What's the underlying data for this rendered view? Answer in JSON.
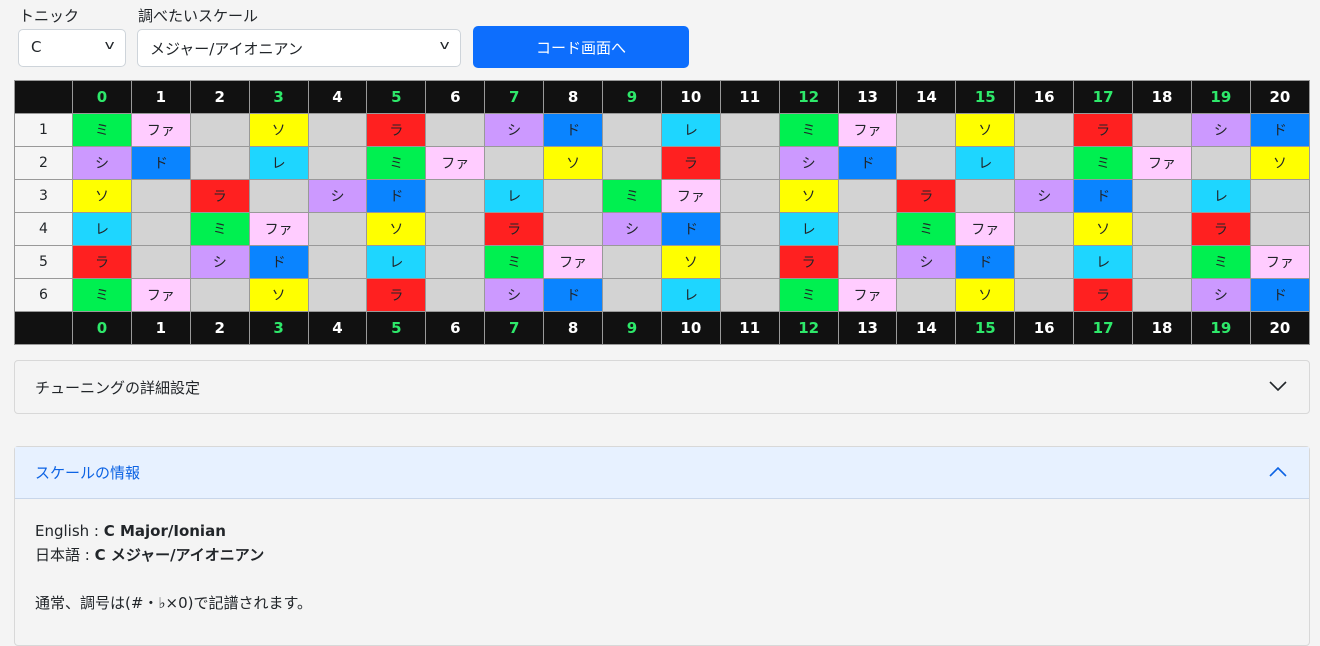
{
  "controls": {
    "tonic_label": "トニック",
    "tonic_value": "C",
    "scale_label": "調べたいスケール",
    "scale_value": "メジャー/アイオニアン",
    "chord_button": "コード画面へ"
  },
  "fretboard": {
    "frets": [
      "0",
      "1",
      "2",
      "3",
      "4",
      "5",
      "6",
      "7",
      "8",
      "9",
      "10",
      "11",
      "12",
      "13",
      "14",
      "15",
      "16",
      "17",
      "18",
      "19",
      "20"
    ],
    "marked_frets": [
      0,
      3,
      5,
      7,
      9,
      12,
      15,
      17,
      19
    ],
    "strings": [
      {
        "label": "1",
        "notes": [
          "ミ",
          "ファ",
          "",
          "ソ",
          "",
          "ラ",
          "",
          "シ",
          "ド",
          "",
          "レ",
          "",
          "ミ",
          "ファ",
          "",
          "ソ",
          "",
          "ラ",
          "",
          "シ",
          "ド"
        ]
      },
      {
        "label": "2",
        "notes": [
          "シ",
          "ド",
          "",
          "レ",
          "",
          "ミ",
          "ファ",
          "",
          "ソ",
          "",
          "ラ",
          "",
          "シ",
          "ド",
          "",
          "レ",
          "",
          "ミ",
          "ファ",
          "",
          "ソ"
        ]
      },
      {
        "label": "3",
        "notes": [
          "ソ",
          "",
          "ラ",
          "",
          "シ",
          "ド",
          "",
          "レ",
          "",
          "ミ",
          "ファ",
          "",
          "ソ",
          "",
          "ラ",
          "",
          "シ",
          "ド",
          "",
          "レ",
          ""
        ]
      },
      {
        "label": "4",
        "notes": [
          "レ",
          "",
          "ミ",
          "ファ",
          "",
          "ソ",
          "",
          "ラ",
          "",
          "シ",
          "ド",
          "",
          "レ",
          "",
          "ミ",
          "ファ",
          "",
          "ソ",
          "",
          "ラ",
          ""
        ]
      },
      {
        "label": "5",
        "notes": [
          "ラ",
          "",
          "シ",
          "ド",
          "",
          "レ",
          "",
          "ミ",
          "ファ",
          "",
          "ソ",
          "",
          "ラ",
          "",
          "シ",
          "ド",
          "",
          "レ",
          "",
          "ミ",
          "ファ"
        ]
      },
      {
        "label": "6",
        "notes": [
          "ミ",
          "ファ",
          "",
          "ソ",
          "",
          "ラ",
          "",
          "シ",
          "ド",
          "",
          "レ",
          "",
          "ミ",
          "ファ",
          "",
          "ソ",
          "",
          "ラ",
          "",
          "シ",
          "ド"
        ]
      }
    ],
    "note_colors": {
      "ド": "#0a84ff",
      "レ": "#1ed6ff",
      "ミ": "#00f050",
      "ファ": "#ffccff",
      "ソ": "#ffff00",
      "ラ": "#ff2020",
      "シ": "#cc99ff"
    },
    "marked_color": "#2ee86a"
  },
  "tuning_accordion": {
    "title": "チューニングの詳細設定"
  },
  "scale_info": {
    "title": "スケールの情報",
    "english_label": "English : ",
    "english_value": "C Major/Ionian",
    "japanese_label": "日本語 : ",
    "japanese_value": "C メジャー/アイオニアン",
    "key_signature": "通常、調号は(#・♭×0)で記譜されます。"
  }
}
